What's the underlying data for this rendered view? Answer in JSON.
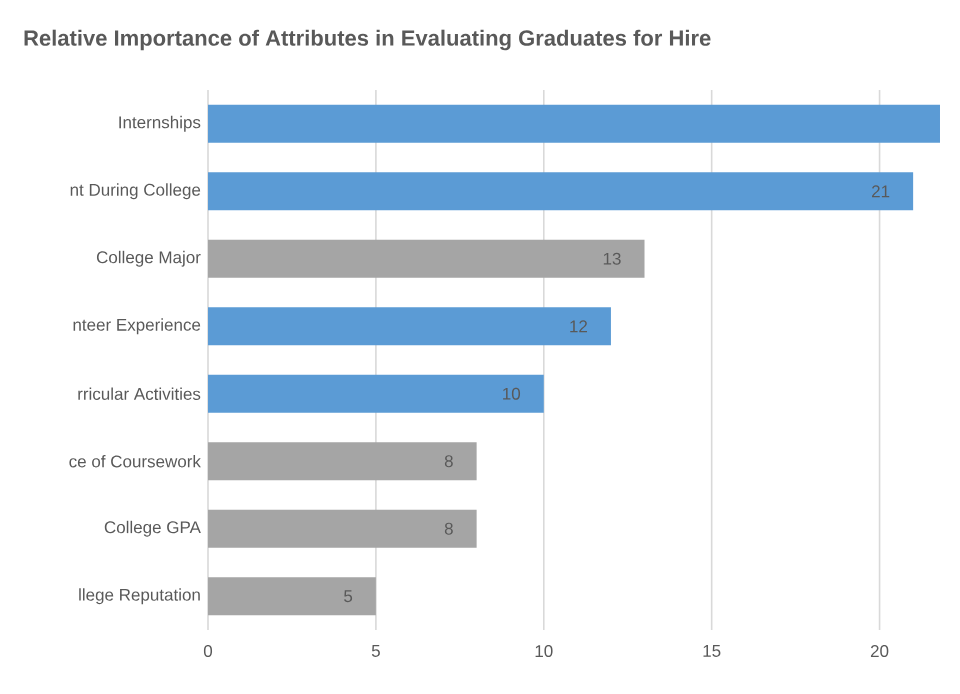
{
  "chart_data": {
    "type": "bar",
    "orientation": "horizontal",
    "title": "Relative Importance of Attributes in Evaluating Graduates for Hire",
    "categories": [
      "Internships",
      "nt During College",
      "College Major",
      "nteer Experience",
      "rricular Activities",
      "ce of Coursework",
      "College GPA",
      "llege Reputation"
    ],
    "values": [
      21.8,
      21,
      13,
      12,
      10,
      8,
      8,
      5
    ],
    "colors": [
      "#5b9bd5",
      "#5b9bd5",
      "#a5a5a5",
      "#5b9bd5",
      "#5b9bd5",
      "#a5a5a5",
      "#a5a5a5",
      "#a5a5a5"
    ],
    "value_labels": [
      null,
      "21",
      "13",
      "12",
      "10",
      "8",
      "8",
      "5"
    ],
    "xlim": [
      0,
      21.8
    ],
    "xticks": [
      0,
      5,
      10,
      15,
      20
    ],
    "grid": "x"
  }
}
